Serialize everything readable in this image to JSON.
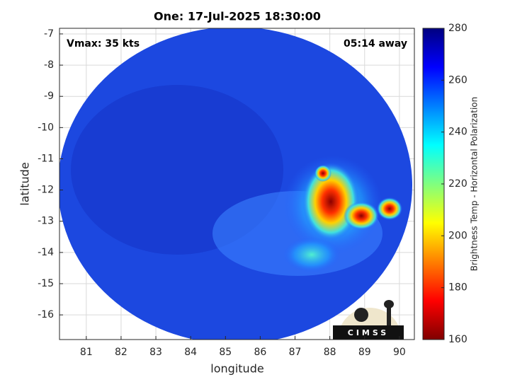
{
  "chart_data": {
    "type": "image-map",
    "title": "One: 17-Jul-2025 18:30:00",
    "xlabel": "longitude",
    "ylabel": "latitude",
    "annotations": [
      "Vmax: 35 kts",
      "05:14 away"
    ],
    "xlim": [
      80.23,
      90.43
    ],
    "xticks": [
      81,
      82,
      83,
      84,
      85,
      86,
      87,
      88,
      89,
      90
    ],
    "ylim": [
      -16.79,
      -6.82
    ],
    "yticks": [
      -16,
      -15,
      -14,
      -13,
      -12,
      -11,
      -10,
      -9,
      -8,
      -7
    ],
    "grid": true,
    "colorbar": {
      "label": "Brightness Temp - Horizontal Polarization",
      "lim": [
        160,
        280
      ],
      "ticks": [
        160,
        180,
        200,
        220,
        240,
        260,
        280
      ],
      "colormap": "jet"
    },
    "logo_text": "CIMSS"
  }
}
